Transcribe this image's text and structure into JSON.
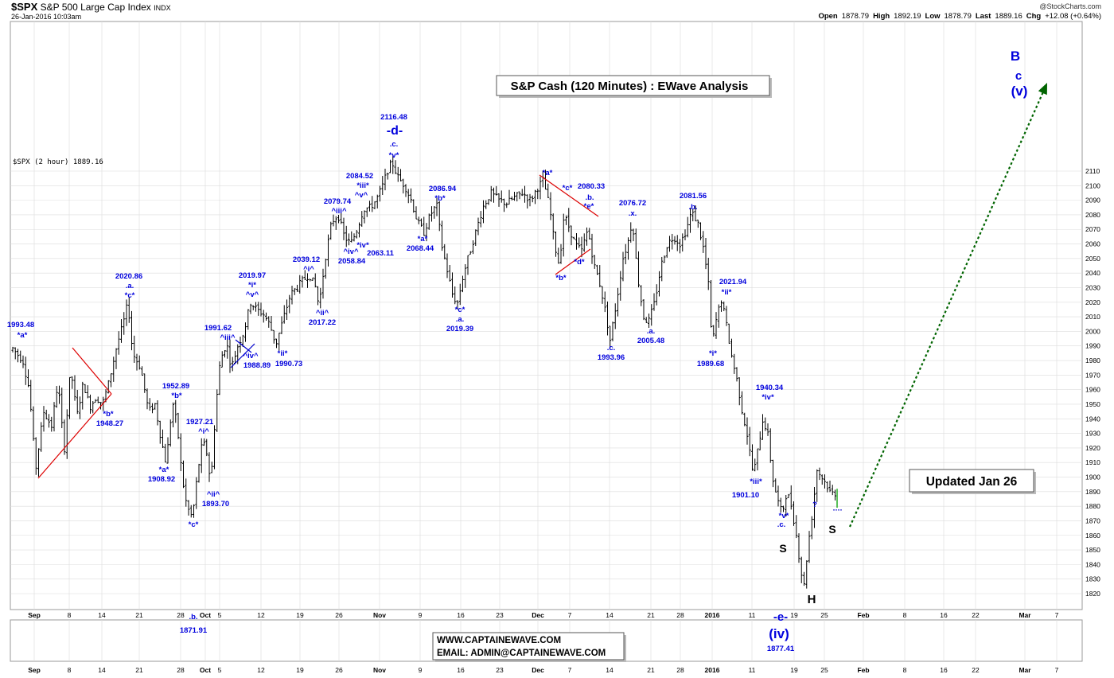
{
  "header": {
    "symbol": "$SPX",
    "name": "S&P 500 Large Cap Index",
    "exchange": "INDX",
    "datetime": "26-Jan-2016 10:03am",
    "copyright": "@StockCharts.com",
    "quote_items": [
      {
        "label": "Open",
        "value": "1878.79"
      },
      {
        "label": "High",
        "value": "1892.19"
      },
      {
        "label": "Low",
        "value": "1878.79"
      },
      {
        "label": "Last",
        "value": "1889.16"
      },
      {
        "label": "Chg",
        "value": "+12.08 (+0.64%)"
      }
    ]
  },
  "chart_data": {
    "type": "ohlc",
    "title": "S&P Cash (120 Minutes) : EWave Analysis",
    "legend": "$SPX (2 hour) 1889.16",
    "updated": "Updated Jan 26",
    "contact": [
      "WWW.CAPTAINEWAVE.COM",
      "EMAIL: ADMIN@CAPTAINEWAVE.COM"
    ],
    "ylim": [
      1810,
      2120
    ],
    "y_ticks": [
      1820,
      1830,
      1840,
      1850,
      1860,
      1870,
      1880,
      1890,
      1900,
      1910,
      1920,
      1930,
      1940,
      1950,
      1960,
      1970,
      1980,
      1990,
      2000,
      2010,
      2020,
      2030,
      2040,
      2050,
      2060,
      2070,
      2080,
      2090,
      2100,
      2110
    ],
    "x_ticks": [
      "Sep",
      "8",
      "14",
      "21",
      "28",
      "Oct",
      "5",
      "12",
      "19",
      "26",
      "Nov",
      "9",
      "16",
      "23",
      "Dec",
      "7",
      "14",
      "21",
      "28",
      "2016",
      "11",
      "19",
      "25",
      "Feb",
      "8",
      "16",
      "22",
      "Mar",
      "7"
    ],
    "price_path": [
      [
        0,
        1965
      ],
      [
        6,
        1993
      ],
      [
        12,
        1975
      ],
      [
        17,
        1990
      ],
      [
        24,
        1985
      ],
      [
        32,
        1980
      ],
      [
        40,
        1960
      ],
      [
        48,
        1905
      ],
      [
        58,
        1945
      ],
      [
        68,
        1935
      ],
      [
        76,
        1965
      ],
      [
        84,
        1918
      ],
      [
        92,
        1975
      ],
      [
        100,
        1942
      ],
      [
        108,
        1965
      ],
      [
        116,
        1948
      ],
      [
        124,
        1955
      ],
      [
        132,
        1950
      ],
      [
        140,
        1965
      ],
      [
        150,
        1990
      ],
      [
        158,
        2005
      ],
      [
        164,
        2020
      ],
      [
        170,
        1985
      ],
      [
        180,
        1975
      ],
      [
        190,
        1945
      ],
      [
        198,
        1950
      ],
      [
        206,
        1925
      ],
      [
        212,
        1909
      ],
      [
        220,
        1952
      ],
      [
        226,
        1935
      ],
      [
        232,
        1900
      ],
      [
        238,
        1880
      ],
      [
        245,
        1872
      ],
      [
        252,
        1905
      ],
      [
        258,
        1925
      ],
      [
        264,
        1915
      ],
      [
        268,
        1894
      ],
      [
        274,
        1945
      ],
      [
        280,
        1980
      ],
      [
        288,
        1992
      ],
      [
        294,
        1975
      ],
      [
        302,
        1990
      ],
      [
        310,
        2000
      ],
      [
        318,
        2020
      ],
      [
        326,
        2015
      ],
      [
        334,
        2012
      ],
      [
        342,
        2005
      ],
      [
        350,
        1991
      ],
      [
        360,
        2010
      ],
      [
        368,
        2025
      ],
      [
        376,
        2030
      ],
      [
        384,
        2035
      ],
      [
        392,
        2039
      ],
      [
        400,
        2030
      ],
      [
        404,
        2017
      ],
      [
        412,
        2050
      ],
      [
        420,
        2075
      ],
      [
        428,
        2080
      ],
      [
        436,
        2065
      ],
      [
        444,
        2060
      ],
      [
        452,
        2070
      ],
      [
        460,
        2084
      ],
      [
        468,
        2085
      ],
      [
        476,
        2090
      ],
      [
        484,
        2100
      ],
      [
        490,
        2110
      ],
      [
        496,
        2116
      ],
      [
        504,
        2105
      ],
      [
        512,
        2100
      ],
      [
        520,
        2090
      ],
      [
        528,
        2075
      ],
      [
        536,
        2068
      ],
      [
        544,
        2080
      ],
      [
        552,
        2087
      ],
      [
        558,
        2060
      ],
      [
        566,
        2040
      ],
      [
        572,
        2025
      ],
      [
        578,
        2019
      ],
      [
        586,
        2040
      ],
      [
        594,
        2055
      ],
      [
        602,
        2070
      ],
      [
        610,
        2085
      ],
      [
        620,
        2095
      ],
      [
        630,
        2090
      ],
      [
        640,
        2088
      ],
      [
        650,
        2092
      ],
      [
        660,
        2095
      ],
      [
        670,
        2090
      ],
      [
        678,
        2098
      ],
      [
        686,
        2104
      ],
      [
        694,
        2085
      ],
      [
        700,
        2060
      ],
      [
        706,
        2045
      ],
      [
        712,
        2080
      ],
      [
        718,
        2072
      ],
      [
        726,
        2060
      ],
      [
        734,
        2055
      ],
      [
        742,
        2070
      ],
      [
        750,
        2045
      ],
      [
        756,
        2035
      ],
      [
        762,
        2020
      ],
      [
        770,
        1994
      ],
      [
        778,
        2020
      ],
      [
        786,
        2050
      ],
      [
        792,
        2060
      ],
      [
        798,
        2077
      ],
      [
        804,
        2040
      ],
      [
        812,
        2010
      ],
      [
        818,
        2006
      ],
      [
        826,
        2020
      ],
      [
        834,
        2045
      ],
      [
        842,
        2060
      ],
      [
        850,
        2065
      ],
      [
        858,
        2060
      ],
      [
        866,
        2070
      ],
      [
        872,
        2082
      ],
      [
        880,
        2075
      ],
      [
        888,
        2055
      ],
      [
        894,
        2030
      ],
      [
        898,
        1990
      ],
      [
        904,
        2010
      ],
      [
        910,
        2022
      ],
      [
        916,
        2005
      ],
      [
        922,
        1985
      ],
      [
        930,
        1965
      ],
      [
        936,
        1945
      ],
      [
        942,
        1930
      ],
      [
        950,
        1901
      ],
      [
        956,
        1920
      ],
      [
        962,
        1940
      ],
      [
        968,
        1930
      ],
      [
        974,
        1900
      ],
      [
        980,
        1885
      ],
      [
        986,
        1875
      ],
      [
        992,
        1890
      ],
      [
        998,
        1880
      ],
      [
        1004,
        1860
      ],
      [
        1010,
        1835
      ],
      [
        1014,
        1825
      ],
      [
        1018,
        1850
      ],
      [
        1024,
        1875
      ],
      [
        1030,
        1905
      ],
      [
        1036,
        1900
      ],
      [
        1042,
        1895
      ],
      [
        1046,
        1890
      ],
      [
        1050,
        1889
      ]
    ],
    "labels": [
      {
        "t": "1993.48",
        "x": 26,
        "y": 411,
        "c": "blue"
      },
      {
        "t": "*a*",
        "x": 28,
        "y": 424,
        "c": "blue"
      },
      {
        "t": "*b*",
        "x": 136,
        "y": 523,
        "c": "blue"
      },
      {
        "t": "1948.27",
        "x": 138,
        "y": 535,
        "c": "blue"
      },
      {
        "t": "2020.86",
        "x": 162,
        "y": 350,
        "c": "blue"
      },
      {
        "t": ".a.",
        "x": 163,
        "y": 362,
        "c": "blue"
      },
      {
        "t": "*c*",
        "x": 163,
        "y": 374,
        "c": "blue"
      },
      {
        "t": "1952.89",
        "x": 221,
        "y": 488,
        "c": "blue"
      },
      {
        "t": "*b*",
        "x": 222,
        "y": 500,
        "c": "blue"
      },
      {
        "t": "*a*",
        "x": 206,
        "y": 593,
        "c": "blue"
      },
      {
        "t": "1908.92",
        "x": 203,
        "y": 605,
        "c": "blue"
      },
      {
        "t": "1927.21",
        "x": 251,
        "y": 533,
        "c": "blue"
      },
      {
        "t": "^i^",
        "x": 256,
        "y": 545,
        "c": "blue"
      },
      {
        "t": "^ii^",
        "x": 268,
        "y": 624,
        "c": "blue"
      },
      {
        "t": "1893.70",
        "x": 271,
        "y": 636,
        "c": "blue"
      },
      {
        "t": "*c*",
        "x": 243,
        "y": 662,
        "c": "blue"
      },
      {
        "t": ".b.",
        "x": 243,
        "y": 778,
        "c": "blue"
      },
      {
        "t": "1871.91",
        "x": 243,
        "y": 795,
        "c": "blue"
      },
      {
        "t": "1991.62",
        "x": 274,
        "y": 415,
        "c": "blue"
      },
      {
        "t": "^iii^",
        "x": 286,
        "y": 427,
        "c": "blue"
      },
      {
        "t": "^iv^",
        "x": 315,
        "y": 450,
        "c": "blue"
      },
      {
        "t": "1988.89",
        "x": 323,
        "y": 462,
        "c": "blue"
      },
      {
        "t": "2019.97",
        "x": 317,
        "y": 349,
        "c": "blue"
      },
      {
        "t": "*i*",
        "x": 317,
        "y": 361,
        "c": "blue"
      },
      {
        "t": "^v^",
        "x": 317,
        "y": 373,
        "c": "blue"
      },
      {
        "t": "*ii*",
        "x": 355,
        "y": 447,
        "c": "blue"
      },
      {
        "t": "1990.73",
        "x": 363,
        "y": 460,
        "c": "blue"
      },
      {
        "t": "2039.12",
        "x": 385,
        "y": 329,
        "c": "blue"
      },
      {
        "t": "^i^",
        "x": 388,
        "y": 341,
        "c": "blue"
      },
      {
        "t": "^ii^",
        "x": 405,
        "y": 396,
        "c": "blue"
      },
      {
        "t": "2017.22",
        "x": 405,
        "y": 408,
        "c": "blue"
      },
      {
        "t": "2079.74",
        "x": 424,
        "y": 256,
        "c": "blue"
      },
      {
        "t": "^iii^",
        "x": 426,
        "y": 268,
        "c": "blue"
      },
      {
        "t": "2084.52",
        "x": 452,
        "y": 224,
        "c": "blue"
      },
      {
        "t": "*iii*",
        "x": 456,
        "y": 236,
        "c": "blue"
      },
      {
        "t": "^v^",
        "x": 454,
        "y": 248,
        "c": "blue"
      },
      {
        "t": "*iv*",
        "x": 456,
        "y": 311,
        "c": "blue"
      },
      {
        "t": "^iv^",
        "x": 441,
        "y": 319,
        "c": "blue"
      },
      {
        "t": "2058.84",
        "x": 442,
        "y": 331,
        "c": "blue"
      },
      {
        "t": "2063.11",
        "x": 478,
        "y": 321,
        "c": "blue"
      },
      {
        "t": "2116.48",
        "x": 495,
        "y": 150,
        "c": "blue"
      },
      {
        "t": "-d-",
        "x": 496,
        "y": 169,
        "c": "blue",
        "s": 16
      },
      {
        "t": ".c.",
        "x": 495,
        "y": 184,
        "c": "blue"
      },
      {
        "t": "*v*",
        "x": 495,
        "y": 198,
        "c": "blue"
      },
      {
        "t": "2086.94",
        "x": 556,
        "y": 240,
        "c": "blue"
      },
      {
        "t": "*b*",
        "x": 553,
        "y": 252,
        "c": "blue"
      },
      {
        "t": "*a*",
        "x": 531,
        "y": 303,
        "c": "blue"
      },
      {
        "t": "2068.44",
        "x": 528,
        "y": 315,
        "c": "blue"
      },
      {
        "t": "*c*",
        "x": 578,
        "y": 392,
        "c": "blue"
      },
      {
        "t": ".a.",
        "x": 578,
        "y": 404,
        "c": "blue"
      },
      {
        "t": "2019.39",
        "x": 578,
        "y": 416,
        "c": "blue"
      },
      {
        "t": "*a*",
        "x": 688,
        "y": 220,
        "c": "blue"
      },
      {
        "t": "*c*",
        "x": 713,
        "y": 239,
        "c": "blue"
      },
      {
        "t": "2080.33",
        "x": 743,
        "y": 237,
        "c": "blue"
      },
      {
        "t": ".b.",
        "x": 741,
        "y": 251,
        "c": "blue"
      },
      {
        "t": "*e*",
        "x": 740,
        "y": 262,
        "c": "blue"
      },
      {
        "t": "*d*",
        "x": 728,
        "y": 332,
        "c": "blue"
      },
      {
        "t": "*b*",
        "x": 705,
        "y": 352,
        "c": "blue"
      },
      {
        "t": ".c.",
        "x": 768,
        "y": 440,
        "c": "blue"
      },
      {
        "t": "1993.96",
        "x": 768,
        "y": 452,
        "c": "blue"
      },
      {
        "t": "2076.72",
        "x": 795,
        "y": 258,
        "c": "blue"
      },
      {
        "t": ".x.",
        "x": 795,
        "y": 271,
        "c": "blue"
      },
      {
        "t": ".a.",
        "x": 818,
        "y": 419,
        "c": "blue"
      },
      {
        "t": "2005.48",
        "x": 818,
        "y": 431,
        "c": "blue"
      },
      {
        "t": "2081.56",
        "x": 871,
        "y": 249,
        "c": "blue"
      },
      {
        "t": ".b.",
        "x": 871,
        "y": 263,
        "c": "blue"
      },
      {
        "t": "2021.94",
        "x": 921,
        "y": 357,
        "c": "blue"
      },
      {
        "t": "*ii*",
        "x": 913,
        "y": 370,
        "c": "blue"
      },
      {
        "t": "*i*",
        "x": 896,
        "y": 447,
        "c": "blue"
      },
      {
        "t": "1989.68",
        "x": 893,
        "y": 460,
        "c": "blue"
      },
      {
        "t": "1940.34",
        "x": 967,
        "y": 490,
        "c": "blue"
      },
      {
        "t": "*iv*",
        "x": 965,
        "y": 502,
        "c": "blue"
      },
      {
        "t": "*iii*",
        "x": 950,
        "y": 608,
        "c": "blue"
      },
      {
        "t": "1901.10",
        "x": 937,
        "y": 625,
        "c": "blue"
      },
      {
        "t": "*v*",
        "x": 985,
        "y": 651,
        "c": "blue"
      },
      {
        "t": ".c.",
        "x": 982,
        "y": 662,
        "c": "blue"
      },
      {
        "t": "?",
        "x": 1024,
        "y": 637,
        "c": "blue"
      },
      {
        "t": "-e-",
        "x": 981,
        "y": 780,
        "c": "blue",
        "s": 15
      },
      {
        "t": "(iv)",
        "x": 979,
        "y": 802,
        "c": "blue",
        "s": 17
      },
      {
        "t": "1877.41",
        "x": 981,
        "y": 818,
        "c": "blue"
      },
      {
        "t": "S",
        "x": 984,
        "y": 694,
        "c": "black",
        "s": 14
      },
      {
        "t": "H",
        "x": 1020,
        "y": 758,
        "c": "black",
        "s": 15
      },
      {
        "t": "S",
        "x": 1046,
        "y": 670,
        "c": "black",
        "s": 14
      },
      {
        "t": "B",
        "x": 1276,
        "y": 76,
        "c": "blue",
        "s": 17
      },
      {
        "t": "c",
        "x": 1280,
        "y": 100,
        "c": "blue",
        "s": 15
      },
      {
        "t": "(v)",
        "x": 1281,
        "y": 120,
        "c": "blue",
        "s": 17
      }
    ],
    "red_lines": [
      [
        [
          48,
          601
        ],
        [
          140,
          495
        ]
      ],
      [
        [
          91,
          437
        ],
        [
          140,
          495
        ]
      ],
      [
        [
          678,
          220
        ],
        [
          752,
          272
        ]
      ],
      [
        [
          698,
          345
        ],
        [
          742,
          313
        ]
      ],
      [
        [
          290,
          462
        ],
        [
          320,
          432
        ]
      ],
      [
        [
          296,
          427
        ],
        [
          316,
          443
        ]
      ]
    ],
    "projection": [
      [
        1068,
        662
      ],
      [
        1316,
        104
      ]
    ],
    "colors": {
      "label_blue": "#0000dd",
      "bar": "#000000",
      "trendline": "#dd0000",
      "projection": "#006400",
      "grid": "#dcdcdc"
    }
  }
}
